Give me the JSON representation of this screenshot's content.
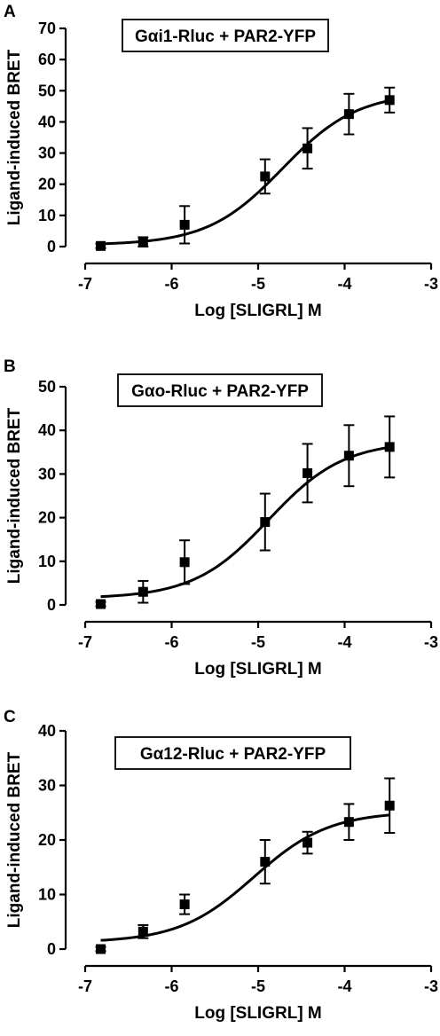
{
  "chart_data": [
    {
      "type": "scatter",
      "panel_label": "A",
      "legend_label": "Gαi1-Rluc + PAR2-YFP",
      "xlabel": "Log [SLIGRL] M",
      "ylabel": "Ligand-induced BRET",
      "xlim": [
        -7,
        -3
      ],
      "ylim": [
        0,
        70
      ],
      "xticks": [
        -7,
        -6,
        -5,
        -4,
        -3
      ],
      "yticks": [
        0,
        10,
        20,
        30,
        40,
        50,
        60,
        70
      ],
      "series": [
        {
          "x": [
            -6.82,
            -6.33,
            -5.85,
            -4.92,
            -4.43,
            -3.95,
            -3.48
          ],
          "y": [
            0.2,
            1.5,
            7.0,
            22.5,
            31.5,
            42.5,
            47.0
          ],
          "error": [
            0.7,
            1.5,
            6.0,
            5.5,
            6.5,
            6.5,
            4.0
          ]
        }
      ],
      "fit": {
        "bottom": 0.5,
        "top": 49.5,
        "logEC50": -4.72,
        "hill": 1.0
      }
    },
    {
      "type": "scatter",
      "panel_label": "B",
      "legend_label": "Gαo-Rluc + PAR2-YFP",
      "xlabel": "Log [SLIGRL] M",
      "ylabel": "Ligand-induced BRET",
      "xlim": [
        -7,
        -3
      ],
      "ylim": [
        0,
        50
      ],
      "xticks": [
        -7,
        -6,
        -5,
        -4,
        -3
      ],
      "yticks": [
        0,
        10,
        20,
        30,
        40,
        50
      ],
      "series": [
        {
          "x": [
            -6.82,
            -6.33,
            -5.85,
            -4.92,
            -4.43,
            -3.95,
            -3.48
          ],
          "y": [
            0.2,
            3.0,
            9.8,
            19.0,
            30.2,
            34.2,
            36.2
          ],
          "error": [
            0.5,
            2.5,
            5.0,
            6.5,
            6.7,
            7.0,
            7.0
          ]
        }
      ],
      "fit": {
        "bottom": 1.5,
        "top": 37.5,
        "logEC50": -4.88,
        "hill": 1.0
      }
    },
    {
      "type": "scatter",
      "panel_label": "C",
      "legend_label": "Gα12-Rluc + PAR2-YFP",
      "xlabel": "Log [SLIGRL] M",
      "ylabel": "Ligand-induced BRET",
      "xlim": [
        -7,
        -3
      ],
      "ylim": [
        0,
        40
      ],
      "xticks": [
        -7,
        -6,
        -5,
        -4,
        -3
      ],
      "yticks": [
        0,
        10,
        20,
        30,
        40
      ],
      "series": [
        {
          "x": [
            -6.82,
            -6.33,
            -5.85,
            -4.92,
            -4.43,
            -3.95,
            -3.48
          ],
          "y": [
            0.0,
            3.2,
            8.2,
            16.0,
            19.5,
            23.3,
            26.3
          ],
          "error": [
            0.4,
            1.2,
            1.8,
            4.0,
            2.0,
            3.3,
            5.0
          ]
        }
      ],
      "fit": {
        "bottom": 1.2,
        "top": 25.2,
        "logEC50": -5.05,
        "hill": 1.0
      }
    }
  ]
}
